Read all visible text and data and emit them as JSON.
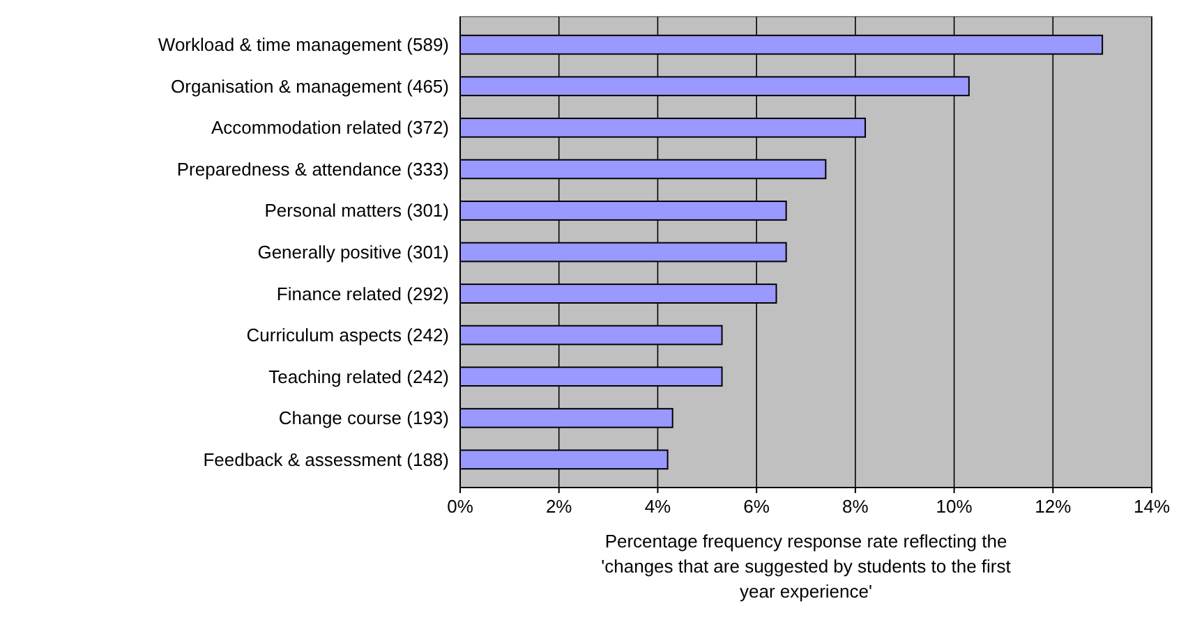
{
  "chart_data": {
    "type": "bar",
    "orientation": "horizontal",
    "categories": [
      "Workload & time management (589)",
      "Organisation & management (465)",
      "Accommodation related (372)",
      "Preparedness & attendance (333)",
      "Personal matters (301)",
      "Generally positive (301)",
      "Finance related (292)",
      "Curriculum aspects (242)",
      "Teaching related (242)",
      "Change course (193)",
      "Feedback & assessment (188)"
    ],
    "values": [
      13.0,
      10.3,
      8.2,
      7.4,
      6.6,
      6.6,
      6.4,
      5.3,
      5.3,
      4.3,
      4.2
    ],
    "color": "#9999ff",
    "xlim": [
      0,
      14
    ],
    "xticks": [
      {
        "value": 0,
        "label": "0%"
      },
      {
        "value": 2,
        "label": "2%"
      },
      {
        "value": 4,
        "label": "4%"
      },
      {
        "value": 6,
        "label": "6%"
      },
      {
        "value": 8,
        "label": "8%"
      },
      {
        "value": 10,
        "label": "10%"
      },
      {
        "value": 12,
        "label": "12%"
      },
      {
        "value": 14,
        "label": "14%"
      }
    ],
    "xlabel": "Percentage frequency response rate reflecting the 'changes that are suggested by students to the first year experience'",
    "grid": "x"
  }
}
